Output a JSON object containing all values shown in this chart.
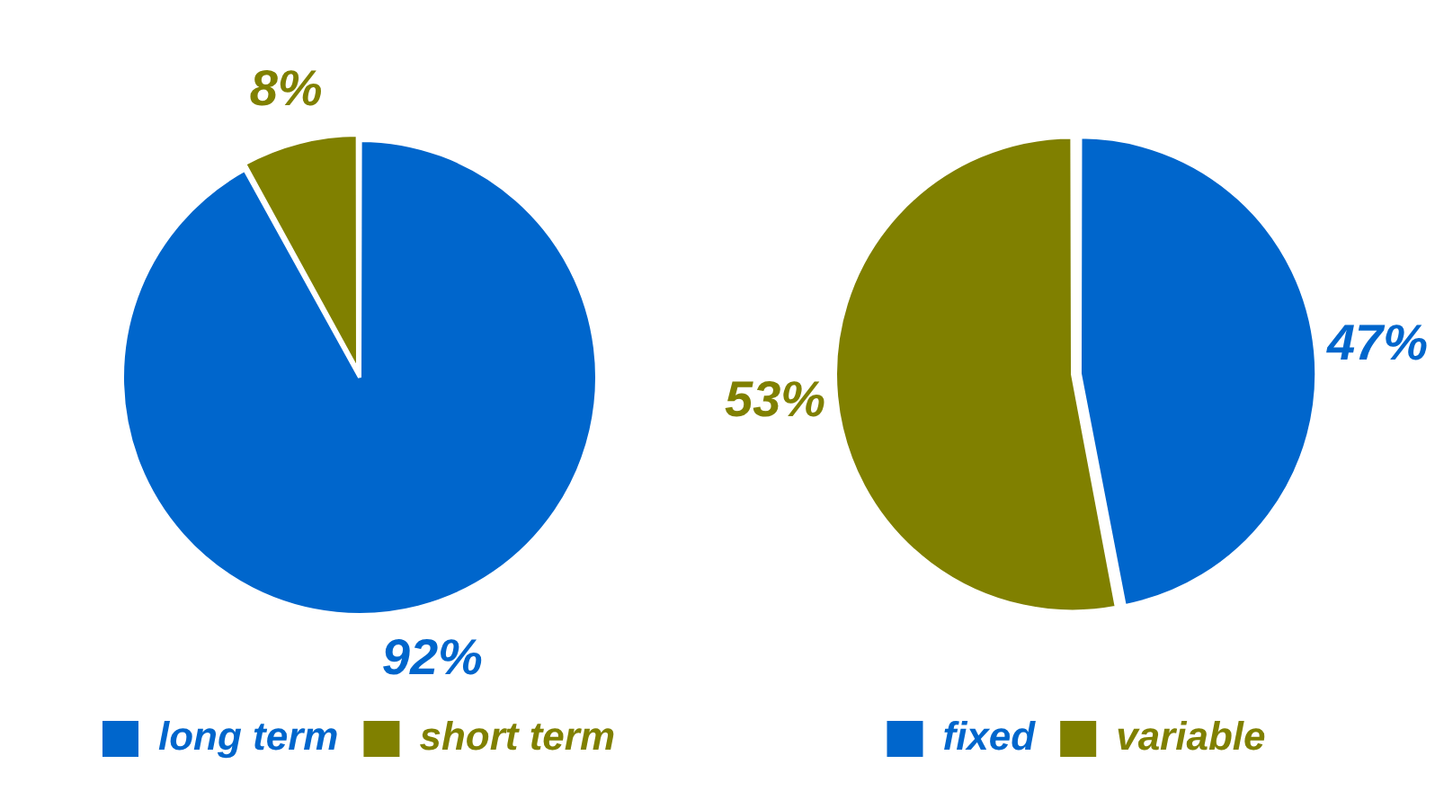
{
  "chart_data": [
    {
      "type": "pie",
      "categories": [
        "long term",
        "short term"
      ],
      "values": [
        92,
        8
      ],
      "colors": [
        "#0066cc",
        "#808000"
      ],
      "value_labels": [
        "92%",
        "8%"
      ],
      "legend": "bottom"
    },
    {
      "type": "pie",
      "categories": [
        "fixed",
        "variable"
      ],
      "values": [
        47,
        53
      ],
      "colors": [
        "#0066cc",
        "#808000"
      ],
      "value_labels": [
        "47%",
        "53%"
      ],
      "legend": "bottom"
    }
  ]
}
